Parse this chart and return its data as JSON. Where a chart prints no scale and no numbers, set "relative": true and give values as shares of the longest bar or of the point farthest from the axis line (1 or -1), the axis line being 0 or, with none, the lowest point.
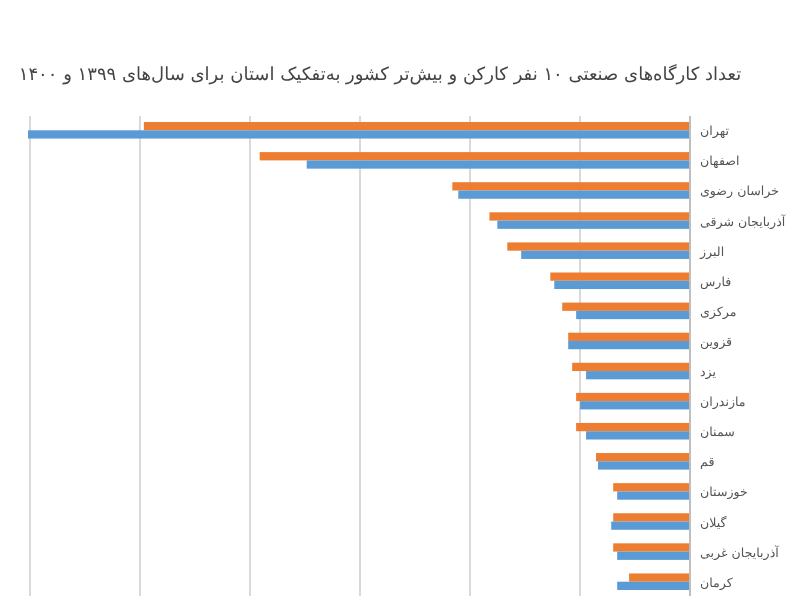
{
  "chart_data": {
    "type": "bar",
    "orientation": "horizontal",
    "relative": true,
    "title": "تعداد کارگاه‌های صنعتی ۱۰ نفر کارکن و بیش‌تر کشور به‌تفکیک استان برای سال‌های ۱۳۹۹ و ۱۴۰۰",
    "categories": [
      "تهران",
      "اصفهان",
      "خراسان رضوی",
      "آذربایجان شرقی",
      "البرز",
      "فارس",
      "مرکزی",
      "قزوین",
      "یزد",
      "مازندران",
      "سمنان",
      "قم",
      "خوزستان",
      "گیلان",
      "آذربایجان غربی",
      "کرمان"
    ],
    "series": [
      {
        "color": "#ed7d31",
        "values": [
          0.825,
          0.65,
          0.359,
          0.303,
          0.276,
          0.211,
          0.193,
          0.184,
          0.178,
          0.172,
          0.172,
          0.142,
          0.116,
          0.116,
          0.116,
          0.092
        ]
      },
      {
        "color": "#5b9bd5",
        "values": [
          1,
          0.579,
          0.35,
          0.291,
          0.255,
          0.205,
          0.172,
          0.184,
          0.157,
          0.166,
          0.157,
          0.139,
          0.11,
          0.119,
          0.11,
          0.11
        ]
      }
    ],
    "grid": "x"
  }
}
